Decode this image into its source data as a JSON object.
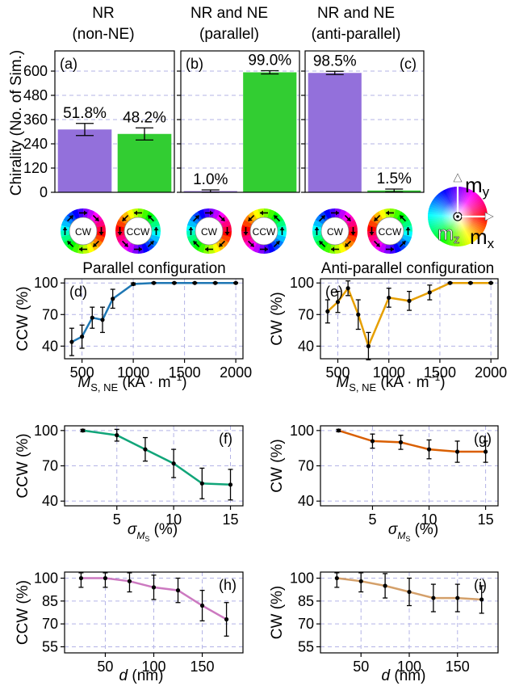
{
  "chart_data": [
    {
      "panel": "(a)",
      "type": "bar",
      "header": [
        "NR",
        "(non-NE)"
      ],
      "ylabel": "Chirality (No. of Sim.)",
      "yticks": [
        0,
        120,
        240,
        360,
        480,
        600
      ],
      "ylim": [
        0,
        700
      ],
      "categories": [
        "CW",
        "CCW"
      ],
      "values": [
        311,
        289
      ],
      "errors": [
        30,
        30
      ],
      "labels": [
        "51.8%",
        "48.2%"
      ],
      "colors": [
        "#9370db",
        "#32cd32"
      ]
    },
    {
      "panel": "(b)",
      "type": "bar",
      "header": [
        "NR and NE",
        "(parallel)"
      ],
      "yticks": [
        0,
        120,
        240,
        360,
        480,
        600
      ],
      "ylim": [
        0,
        700
      ],
      "categories": [
        "CW",
        "CCW"
      ],
      "values": [
        6,
        594
      ],
      "errors": [
        6,
        8
      ],
      "labels": [
        "1.0%",
        "99.0%"
      ],
      "colors": [
        "#9370db",
        "#32cd32"
      ]
    },
    {
      "panel": "(c)",
      "type": "bar",
      "header": [
        "NR and NE",
        "(anti-parallel)"
      ],
      "yticks": [
        0,
        120,
        240,
        360,
        480,
        600
      ],
      "ylim": [
        0,
        700
      ],
      "categories": [
        "CW",
        "CCW"
      ],
      "values": [
        591,
        9
      ],
      "errors": [
        8,
        7
      ],
      "labels": [
        "98.5%",
        "1.5%"
      ],
      "colors": [
        "#9370db",
        "#32cd32"
      ]
    },
    {
      "panel": "(d)",
      "type": "line",
      "title": "Parallel configuration",
      "ylabel": "CCW (%)",
      "xlabel": "M_S,NE (kA·m⁻¹)",
      "x": [
        400,
        500,
        600,
        700,
        800,
        1000,
        1200,
        1400,
        1600,
        1800,
        2000
      ],
      "y": [
        44,
        49,
        67,
        65,
        85,
        99,
        100,
        100,
        100,
        100,
        100
      ],
      "err": [
        13,
        11,
        10,
        12,
        9,
        1,
        0.5,
        0.5,
        0.5,
        0.5,
        0.5
      ],
      "xlim": [
        330,
        2070
      ],
      "ylim": [
        28,
        104
      ],
      "xticks": [
        500,
        1000,
        1500,
        2000
      ],
      "yticks": [
        40,
        70,
        100
      ],
      "color": "#1f77b4"
    },
    {
      "panel": "(e)",
      "type": "line",
      "title": "Anti-parallel configuration",
      "ylabel": "CW (%)",
      "xlabel": "M_S,NE (kA·m⁻¹)",
      "x": [
        400,
        500,
        600,
        700,
        800,
        1000,
        1200,
        1400,
        1600,
        1800,
        2000
      ],
      "y": [
        73,
        82,
        95,
        70,
        40,
        86,
        83,
        91,
        100,
        100,
        100
      ],
      "err": [
        11,
        10,
        7,
        14,
        13,
        9,
        9,
        7,
        0.5,
        0.5,
        0.5
      ],
      "xlim": [
        330,
        2070
      ],
      "ylim": [
        28,
        104
      ],
      "xticks": [
        500,
        1000,
        1500,
        2000
      ],
      "yticks": [
        40,
        70,
        100
      ],
      "color": "#e69f00"
    },
    {
      "panel": "(f)",
      "type": "line",
      "ylabel": "CCW (%)",
      "xlabel": "σ_M_S (%)",
      "x": [
        2,
        5,
        7.5,
        10,
        12.5,
        15
      ],
      "y": [
        100,
        96,
        84,
        72,
        55,
        54
      ],
      "err": [
        1,
        5,
        10,
        12,
        13,
        13
      ],
      "xlim": [
        0.4,
        16.1
      ],
      "ylim": [
        36,
        104
      ],
      "xticks": [
        5,
        10,
        15
      ],
      "yticks": [
        40,
        70,
        100
      ],
      "color": "#11a579"
    },
    {
      "panel": "(g)",
      "type": "line",
      "ylabel": "CW (%)",
      "xlabel": "σ_M_S (%)",
      "x": [
        2,
        5,
        7.5,
        10,
        12.5,
        15
      ],
      "y": [
        100,
        91,
        90,
        84,
        82,
        82
      ],
      "err": [
        1,
        6,
        6,
        8,
        9,
        9
      ],
      "xlim": [
        0.4,
        16.1
      ],
      "ylim": [
        36,
        104
      ],
      "xticks": [
        5,
        10,
        15
      ],
      "yticks": [
        40,
        70,
        100
      ],
      "color": "#d95f02"
    },
    {
      "panel": "(h)",
      "type": "line",
      "ylabel": "CCW (%)",
      "xlabel": "d (nm)",
      "x": [
        25,
        50,
        75,
        100,
        125,
        150,
        175
      ],
      "y": [
        100,
        100,
        98,
        94,
        92,
        82,
        73
      ],
      "err": [
        6,
        6,
        7,
        8,
        8,
        10,
        11
      ],
      "xlim": [
        8,
        192
      ],
      "ylim": [
        51,
        104
      ],
      "xticks": [
        50,
        100,
        150
      ],
      "yticks": [
        55,
        70,
        85,
        100
      ],
      "color": "#cc79c0"
    },
    {
      "panel": "(i)",
      "type": "line",
      "ylabel": "CW (%)",
      "xlabel": "d (nm)",
      "x": [
        25,
        50,
        75,
        100,
        125,
        150,
        175
      ],
      "y": [
        100,
        98,
        95,
        91,
        87,
        87,
        86
      ],
      "err": [
        6,
        7,
        8,
        9,
        9,
        9,
        9
      ],
      "xlim": [
        8,
        192
      ],
      "ylim": [
        51,
        104
      ],
      "xticks": [
        50,
        100,
        150
      ],
      "yticks": [
        55,
        70,
        85,
        100
      ],
      "color": "#d4a06a"
    }
  ],
  "ring_labels": [
    "CW",
    "CCW",
    "CW",
    "CCW",
    "CW",
    "CCW"
  ],
  "legend": {
    "my": "m",
    "my_sub": "y",
    "mz": "m",
    "mz_sub": "z",
    "mx": "m",
    "mx_sub": "x"
  }
}
